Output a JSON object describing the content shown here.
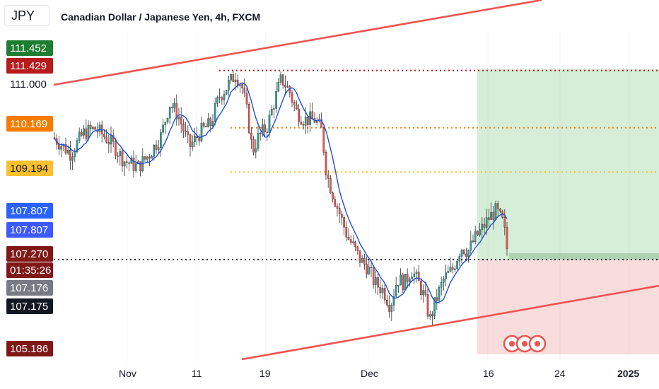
{
  "header": {
    "symbol_button": "JPY",
    "title": "Canadian Dollar / Japanese Yen, 4h, FXCM"
  },
  "price_scale": {
    "plain_ticks": [
      {
        "label": "111.000",
        "id": "tick-111000"
      }
    ],
    "labels": [
      {
        "id": "label-111452",
        "value": "111.452",
        "bg": "#1e7d32",
        "fg": "#ffffff"
      },
      {
        "id": "label-111429",
        "value": "111.429",
        "bg": "#b71c1c",
        "fg": "#ffffff"
      },
      {
        "id": "label-110169",
        "value": "110.169",
        "bg": "#f57c00",
        "fg": "#ffffff"
      },
      {
        "id": "label-109194",
        "value": "109.194",
        "bg": "#fbc02d",
        "fg": "#131722"
      },
      {
        "id": "label-107807a",
        "value": "107.807",
        "bg": "#2962ff",
        "fg": "#ffffff"
      },
      {
        "id": "label-107807b",
        "value": "107.807",
        "bg": "#3d5afe",
        "fg": "#ffffff"
      },
      {
        "id": "label-107270",
        "value": "107.270",
        "bg": "#801818",
        "fg": "#ffffff"
      },
      {
        "id": "label-countdown",
        "value": "01:35:26",
        "bg": "#801818",
        "fg": "#ffffff"
      },
      {
        "id": "label-107176",
        "value": "107.176",
        "bg": "#787b86",
        "fg": "#ffffff"
      },
      {
        "id": "label-107175",
        "value": "107.175",
        "bg": "#131722",
        "fg": "#ffffff"
      },
      {
        "id": "label-105186",
        "value": "105.186",
        "bg": "#801818",
        "fg": "#ffffff"
      }
    ]
  },
  "time_axis": [
    {
      "label": "Nov",
      "bold": false
    },
    {
      "label": "11",
      "bold": false
    },
    {
      "label": "19",
      "bold": false
    },
    {
      "label": "Dec",
      "bold": false
    },
    {
      "label": "16",
      "bold": false
    },
    {
      "label": "24",
      "bold": false
    },
    {
      "label": "2025",
      "bold": true
    }
  ],
  "chart_data": {
    "type": "candlestick",
    "symbol": "CADJPY",
    "timeframe": "4h",
    "current_price": 107.27,
    "countdown": "01:35:26",
    "levels": [
      {
        "price": 111.429,
        "color": "#b71c1c",
        "style": "dotted"
      },
      {
        "price": 110.169,
        "color": "#f57c00",
        "style": "dotted"
      },
      {
        "price": 109.194,
        "color": "#fbc02d",
        "style": "dotted"
      },
      {
        "price": 107.27,
        "color": "#131722",
        "style": "dotted"
      }
    ],
    "position": {
      "type": "long",
      "entry": 107.27,
      "target": 111.452,
      "stop": 105.186,
      "profit_color": "#a5d6a7",
      "loss_color": "#ef9a9a"
    },
    "channel_color": "#ef5350",
    "ma_color": "#1e4fd6",
    "up_color": "#26a69a",
    "down_color": "#ef5350"
  }
}
